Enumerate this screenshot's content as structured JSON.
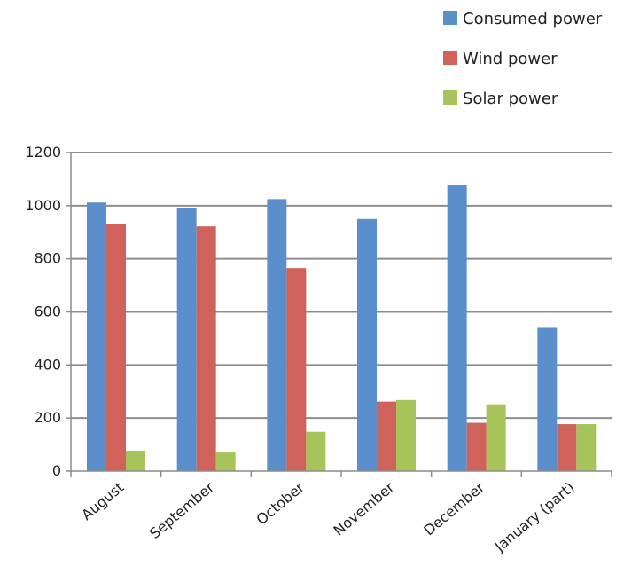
{
  "chart_data": {
    "type": "bar",
    "title": "",
    "xlabel": "",
    "ylabel": "",
    "categories": [
      "August",
      "September",
      "October",
      "November",
      "December",
      "January (part)"
    ],
    "ylim": [
      0,
      1200
    ],
    "yticks": [
      0,
      200,
      400,
      600,
      800,
      1000,
      1200
    ],
    "grid": true,
    "legend_position": "top-right",
    "series": [
      {
        "name": "Consumed power",
        "color": "#5b8fcc",
        "values": [
          1012,
          990,
          1025,
          950,
          1077,
          540
        ]
      },
      {
        "name": "Wind power",
        "color": "#d0625c",
        "values": [
          932,
          922,
          765,
          262,
          182,
          177
        ]
      },
      {
        "name": "Solar power",
        "color": "#a6c45a",
        "values": [
          77,
          70,
          148,
          268,
          252,
          177
        ]
      }
    ]
  }
}
